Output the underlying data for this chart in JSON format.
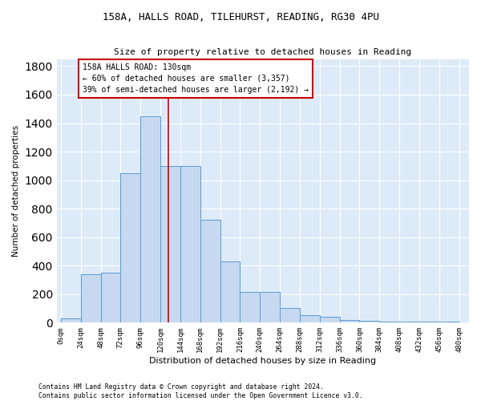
{
  "title1": "158A, HALLS ROAD, TILEHURST, READING, RG30 4PU",
  "title2": "Size of property relative to detached houses in Reading",
  "xlabel": "Distribution of detached houses by size in Reading",
  "ylabel": "Number of detached properties",
  "footnote": "Contains HM Land Registry data © Crown copyright and database right 2024.\nContains public sector information licensed under the Open Government Licence v3.0.",
  "bar_edges": [
    0,
    24,
    48,
    72,
    96,
    120,
    144,
    168,
    192,
    216,
    240,
    264,
    288,
    312,
    336,
    360,
    384,
    408,
    432,
    456,
    480
  ],
  "bar_heights": [
    30,
    340,
    350,
    1050,
    1450,
    1100,
    1100,
    720,
    430,
    215,
    215,
    105,
    55,
    40,
    20,
    15,
    10,
    5,
    5,
    5
  ],
  "bar_color": "#c6d9f0",
  "bar_edge_color": "#5b9bd5",
  "vline_x": 130,
  "vline_color": "#cc0000",
  "annotation_line1": "158A HALLS ROAD: 130sqm",
  "annotation_line2": "← 60% of detached houses are smaller (3,357)",
  "annotation_line3": "39% of semi-detached houses are larger (2,192) →",
  "annotation_box_color": "#cc0000",
  "annotation_bg": "#ffffff",
  "ylim": [
    0,
    1850
  ],
  "yticks": [
    0,
    200,
    400,
    600,
    800,
    1000,
    1200,
    1400,
    1600,
    1800
  ],
  "bg_color": "#ddeaf8",
  "grid_color": "#ffffff",
  "xtick_labels": [
    "0sqm",
    "24sqm",
    "48sqm",
    "72sqm",
    "96sqm",
    "120sqm",
    "144sqm",
    "168sqm",
    "192sqm",
    "216sqm",
    "240sqm",
    "264sqm",
    "288sqm",
    "312sqm",
    "336sqm",
    "360sqm",
    "384sqm",
    "408sqm",
    "432sqm",
    "456sqm",
    "480sqm"
  ]
}
